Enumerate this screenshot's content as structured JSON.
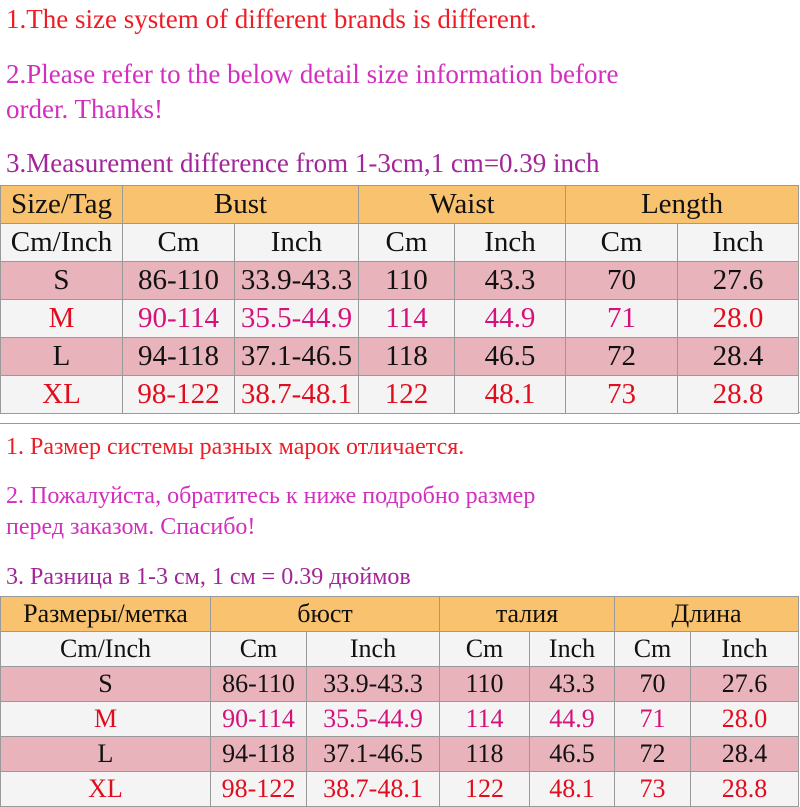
{
  "english": {
    "notes": [
      "1.The size system of different brands is different.",
      "2.Please refer to the below detail size information before",
      "order. Thanks!",
      "3.Measurement difference from 1-3cm,1 cm=0.39 inch"
    ],
    "table": {
      "headers": [
        "Size/Tag",
        "Bust",
        "Waist",
        "Length"
      ],
      "subheaders": [
        "Cm/Inch",
        "Cm",
        "Inch",
        "Cm",
        "Inch",
        "Cm",
        "Inch"
      ],
      "rows": [
        [
          "S",
          "86-110",
          "33.9-43.3",
          "110",
          "43.3",
          "70",
          "27.6"
        ],
        [
          "M",
          "90-114",
          "35.5-44.9",
          "114",
          "44.9",
          "71",
          "28.0"
        ],
        [
          "L",
          "94-118",
          "37.1-46.5",
          "118",
          "46.5",
          "72",
          "28.4"
        ],
        [
          "XL",
          "98-122",
          "38.7-48.1",
          "122",
          "48.1",
          "73",
          "28.8"
        ]
      ]
    }
  },
  "russian": {
    "notes": [
      "1. Размер системы разных марок отличается.",
      "2. Пожалуйста, обратитесь к ниже подробно размер",
      "перед заказом. Спасибо!",
      "3. Разница в 1-3 см, 1 см = 0.39 дюймов"
    ],
    "table": {
      "headers": [
        "Размеры/метка",
        "бюст",
        "талия",
        "Длина"
      ],
      "subheaders": [
        "Cm/Inch",
        "Cm",
        "Inch",
        "Cm",
        "Inch",
        "Cm",
        "Inch"
      ],
      "rows": [
        [
          "S",
          "86-110",
          "33.9-43.3",
          "110",
          "43.3",
          "70",
          "27.6"
        ],
        [
          "M",
          "90-114",
          "35.5-44.9",
          "114",
          "44.9",
          "71",
          "28.0"
        ],
        [
          "L",
          "94-118",
          "37.1-46.5",
          "118",
          "46.5",
          "72",
          "28.4"
        ],
        [
          "XL",
          "98-122",
          "38.7-48.1",
          "122",
          "48.1",
          "73",
          "28.8"
        ]
      ]
    }
  },
  "colors": {
    "header_bg": "#f9c26e",
    "row_pink_bg": "#e8b3bb",
    "row_light_bg": "#f4f4f4",
    "note_red": "#ee1c25",
    "note_pink": "#d22fbf",
    "note_purple": "#a2269a",
    "size_red": "#e10d1f",
    "size_magenta": "#d4127a"
  }
}
